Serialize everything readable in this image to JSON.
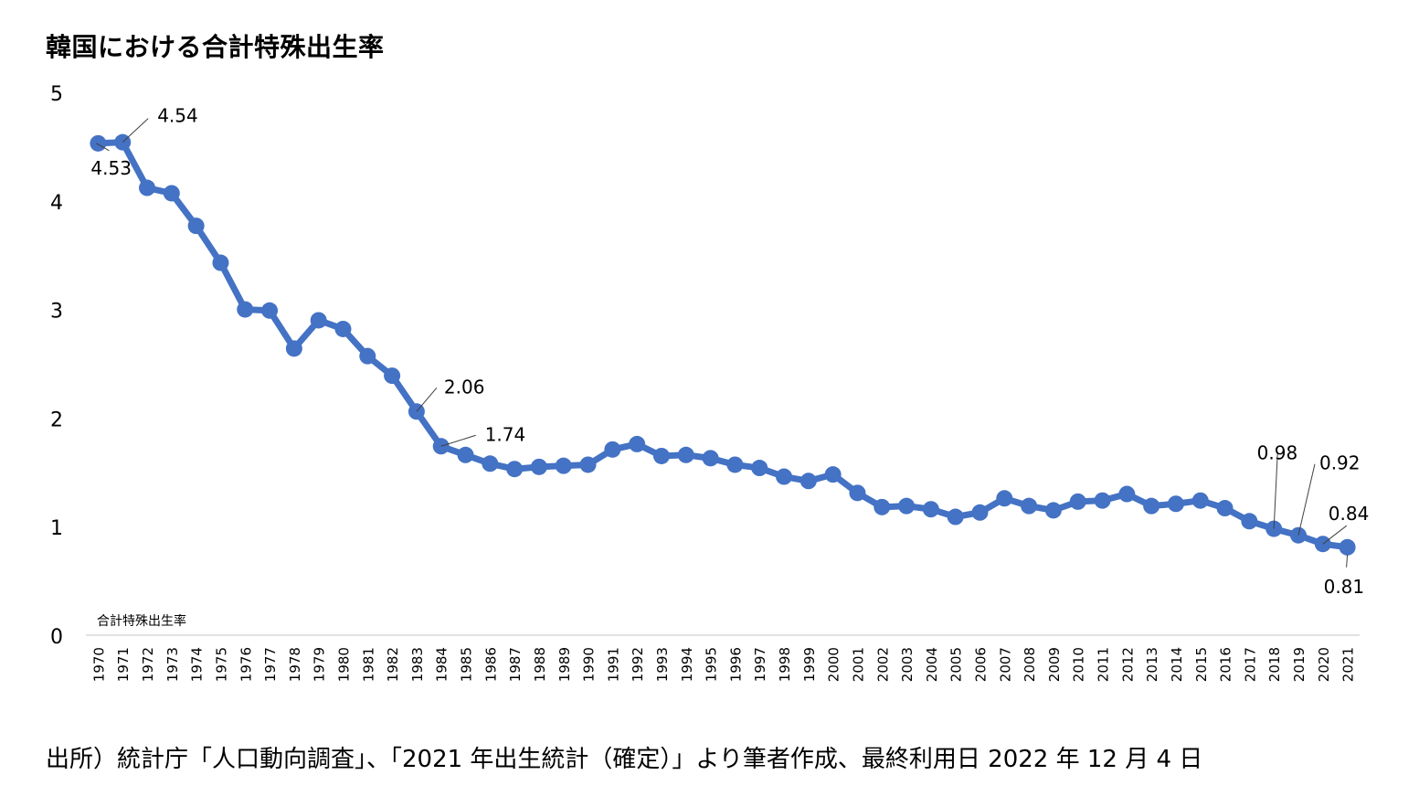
{
  "title": "韓国における合計特殊出生率",
  "source": "出所）統計庁「人口動向調査」、「2021 年出生統計（確定）」より筆者作成、最終利用日 2022 年 12 月 4 日",
  "colors": {
    "series": "#4472C4",
    "axis": "#D9D9D9",
    "text": "#000000",
    "leader": "#404040"
  },
  "chart_data": {
    "type": "line",
    "title": "韓国における合計特殊出生率",
    "xlabel": "",
    "ylabel": "",
    "ylim": [
      0,
      5
    ],
    "yticks": [
      "0",
      "1",
      "2",
      "3",
      "4",
      "5"
    ],
    "grid": false,
    "legend": "bottom-left",
    "categories": [
      "1970",
      "1971",
      "1972",
      "1973",
      "1974",
      "1975",
      "1976",
      "1977",
      "1978",
      "1979",
      "1980",
      "1981",
      "1982",
      "1983",
      "1984",
      "1985",
      "1986",
      "1987",
      "1988",
      "1989",
      "1990",
      "1991",
      "1992",
      "1993",
      "1994",
      "1995",
      "1996",
      "1997",
      "1998",
      "1999",
      "2000",
      "2001",
      "2002",
      "2003",
      "2004",
      "2005",
      "2006",
      "2007",
      "2008",
      "2009",
      "2010",
      "2011",
      "2012",
      "2013",
      "2014",
      "2015",
      "2016",
      "2017",
      "2018",
      "2019",
      "2020",
      "2021"
    ],
    "series": [
      {
        "name": "合計特殊出生率",
        "values": [
          4.53,
          4.54,
          4.12,
          4.07,
          3.77,
          3.43,
          3.0,
          2.99,
          2.64,
          2.9,
          2.82,
          2.57,
          2.39,
          2.06,
          1.74,
          1.66,
          1.58,
          1.53,
          1.55,
          1.56,
          1.57,
          1.71,
          1.76,
          1.65,
          1.66,
          1.63,
          1.57,
          1.54,
          1.46,
          1.42,
          1.48,
          1.31,
          1.18,
          1.19,
          1.16,
          1.09,
          1.13,
          1.26,
          1.19,
          1.15,
          1.23,
          1.24,
          1.3,
          1.19,
          1.21,
          1.24,
          1.17,
          1.05,
          0.98,
          0.92,
          0.84,
          0.81
        ]
      }
    ],
    "data_labels": [
      {
        "category": "1970",
        "text": "4.53"
      },
      {
        "category": "1971",
        "text": "4.54"
      },
      {
        "category": "1983",
        "text": "2.06"
      },
      {
        "category": "1984",
        "text": "1.74"
      },
      {
        "category": "2018",
        "text": "0.98"
      },
      {
        "category": "2019",
        "text": "0.92"
      },
      {
        "category": "2020",
        "text": "0.84"
      },
      {
        "category": "2021",
        "text": "0.81"
      }
    ]
  }
}
